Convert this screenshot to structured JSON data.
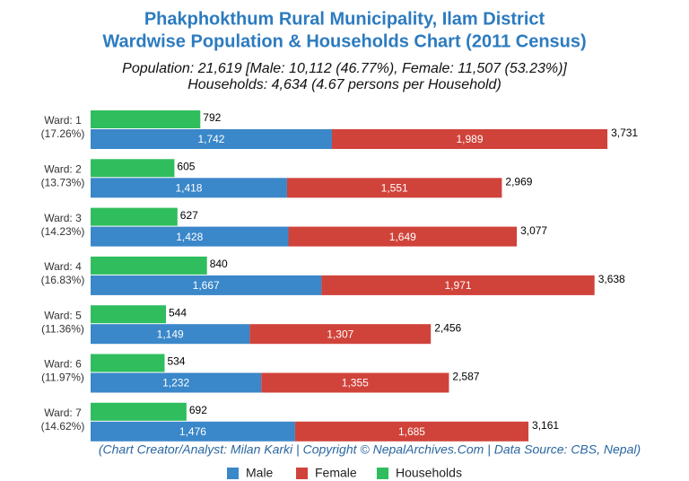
{
  "chart_data": {
    "type": "bar",
    "orientation": "horizontal",
    "title": [
      "Phakphokthum Rural Municipality, Ilam District",
      "Wardwise Population & Households Chart (2011 Census)"
    ],
    "subtitle": [
      "Population: 21,619 [Male: 10,112 (46.77%), Female: 11,507 (53.23%)]",
      "Households: 4,634 (4.67 persons per Household)"
    ],
    "credit": "(Chart Creator/Analyst: Milan Karki | Copyright © NepalArchives.Com | Data Source: CBS, Nepal)",
    "categories": [
      "Ward: 1",
      "Ward: 2",
      "Ward: 3",
      "Ward: 4",
      "Ward: 5",
      "Ward: 6",
      "Ward: 7"
    ],
    "category_shares": [
      "(17.26%)",
      "(13.73%)",
      "(14.23%)",
      "(16.83%)",
      "(11.36%)",
      "(11.97%)",
      "(14.62%)"
    ],
    "series": [
      {
        "name": "Male",
        "color": "#3a87c9",
        "values": [
          1742,
          1418,
          1428,
          1667,
          1149,
          1232,
          1476
        ],
        "value_labels": [
          "1,742",
          "1,418",
          "1,428",
          "1,667",
          "1,149",
          "1,232",
          "1,476"
        ]
      },
      {
        "name": "Female",
        "color": "#d0433a",
        "values": [
          1989,
          1551,
          1649,
          1971,
          1307,
          1355,
          1685
        ],
        "value_labels": [
          "1,989",
          "1,551",
          "1,649",
          "1,971",
          "1,307",
          "1,355",
          "1,685"
        ]
      },
      {
        "name": "Households",
        "color": "#2fbd5e",
        "values": [
          792,
          605,
          627,
          840,
          544,
          534,
          692
        ]
      }
    ],
    "totals": {
      "values": [
        3731,
        2969,
        3077,
        3638,
        2456,
        2587,
        3161
      ],
      "value_labels": [
        "3,731",
        "2,969",
        "3,077",
        "3,638",
        "2,456",
        "2,587",
        "3,161"
      ]
    },
    "xlim": [
      0,
      4000
    ]
  }
}
